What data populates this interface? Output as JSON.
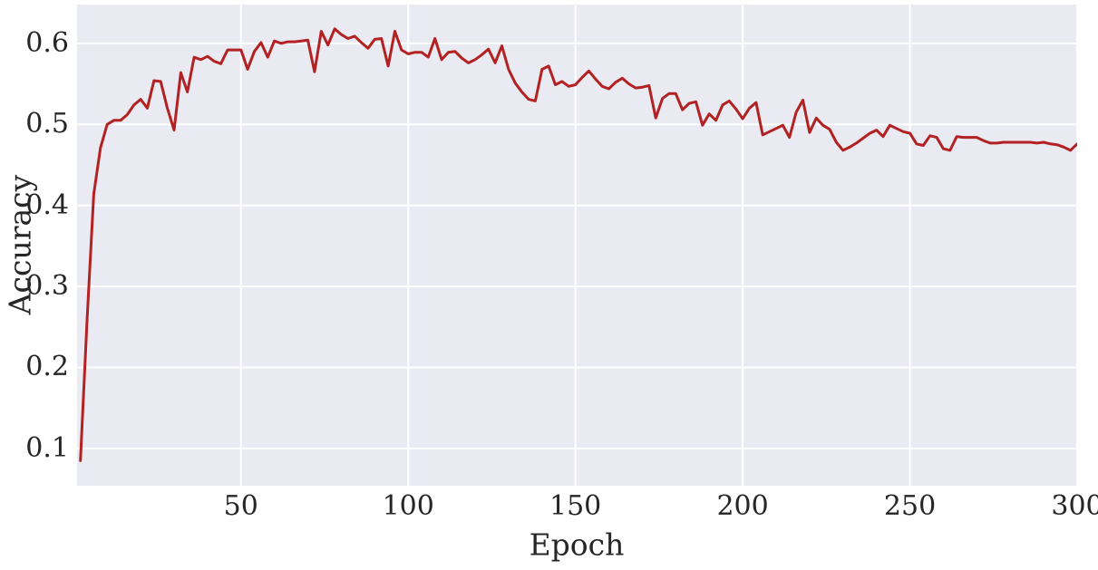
{
  "chart_data": {
    "type": "line",
    "title": "",
    "xlabel": "Epoch",
    "ylabel": "Accuracy",
    "xlim": [
      1,
      300
    ],
    "ylim": [
      0.054,
      0.648
    ],
    "grid": true,
    "legend": "none",
    "xticks": [
      50,
      100,
      150,
      200,
      250,
      300
    ],
    "xtick_labels": [
      "50",
      "100",
      "150",
      "200",
      "250",
      "300"
    ],
    "yticks": [
      0.1,
      0.2,
      0.3,
      0.4,
      0.5,
      0.6
    ],
    "ytick_labels": [
      "0.1",
      "0.2",
      "0.3",
      "0.4",
      "0.5",
      "0.6"
    ],
    "colors": {
      "line": "#b22222",
      "plot_background": "#eaeaf2",
      "figure_background": "#ffffff",
      "grid": "#ffffff",
      "text": "#262626"
    },
    "line_width": 3,
    "x": [
      2,
      4,
      6,
      8,
      10,
      12,
      14,
      16,
      18,
      20,
      22,
      24,
      26,
      28,
      30,
      32,
      34,
      36,
      38,
      40,
      42,
      44,
      46,
      48,
      50,
      52,
      54,
      56,
      58,
      60,
      62,
      64,
      66,
      68,
      70,
      72,
      74,
      76,
      78,
      80,
      82,
      84,
      86,
      88,
      90,
      92,
      94,
      96,
      98,
      100,
      102,
      104,
      106,
      108,
      110,
      112,
      114,
      116,
      118,
      120,
      122,
      124,
      126,
      128,
      130,
      132,
      134,
      136,
      138,
      140,
      142,
      144,
      146,
      148,
      150,
      152,
      154,
      156,
      158,
      160,
      162,
      164,
      166,
      168,
      170,
      172,
      174,
      176,
      178,
      180,
      182,
      184,
      186,
      188,
      190,
      192,
      194,
      196,
      198,
      200,
      202,
      204,
      206,
      208,
      210,
      212,
      214,
      216,
      218,
      220,
      222,
      224,
      226,
      228,
      230,
      232,
      234,
      236,
      238,
      240,
      242,
      244,
      246,
      248,
      250,
      252,
      254,
      256,
      258,
      260,
      262,
      264,
      266,
      268,
      270,
      272,
      274,
      276,
      278,
      280,
      282,
      284,
      286,
      288,
      290,
      292,
      294,
      296,
      298,
      300
    ],
    "series": [
      {
        "name": "accuracy",
        "color": "#b22222",
        "values": [
          0.085,
          0.26,
          0.414,
          0.471,
          0.5,
          0.505,
          0.505,
          0.512,
          0.524,
          0.531,
          0.52,
          0.554,
          0.553,
          0.52,
          0.493,
          0.564,
          0.54,
          0.583,
          0.58,
          0.584,
          0.578,
          0.575,
          0.592,
          0.592,
          0.592,
          0.568,
          0.59,
          0.601,
          0.583,
          0.603,
          0.6,
          0.602,
          0.602,
          0.603,
          0.604,
          0.565,
          0.615,
          0.598,
          0.618,
          0.611,
          0.606,
          0.609,
          0.601,
          0.594,
          0.605,
          0.606,
          0.572,
          0.615,
          0.592,
          0.587,
          0.589,
          0.589,
          0.583,
          0.606,
          0.58,
          0.589,
          0.59,
          0.582,
          0.576,
          0.58,
          0.586,
          0.593,
          0.576,
          0.597,
          0.568,
          0.551,
          0.54,
          0.531,
          0.529,
          0.568,
          0.572,
          0.549,
          0.553,
          0.547,
          0.549,
          0.558,
          0.566,
          0.556,
          0.547,
          0.544,
          0.552,
          0.557,
          0.55,
          0.545,
          0.546,
          0.548,
          0.508,
          0.532,
          0.538,
          0.538,
          0.518,
          0.526,
          0.528,
          0.499,
          0.513,
          0.505,
          0.524,
          0.529,
          0.519,
          0.507,
          0.52,
          0.527,
          0.487,
          0.491,
          0.495,
          0.499,
          0.484,
          0.515,
          0.53,
          0.49,
          0.508,
          0.499,
          0.494,
          0.478,
          0.468,
          0.472,
          0.477,
          0.483,
          0.489,
          0.493,
          0.485,
          0.499,
          0.495,
          0.491,
          0.489,
          0.476,
          0.474,
          0.486,
          0.484,
          0.47,
          0.468,
          0.485,
          0.484,
          0.484,
          0.484,
          0.48,
          0.477,
          0.477,
          0.478,
          0.478,
          0.478,
          0.478,
          0.478,
          0.477,
          0.478,
          0.476,
          0.475,
          0.472,
          0.468,
          0.476
        ]
      }
    ]
  }
}
